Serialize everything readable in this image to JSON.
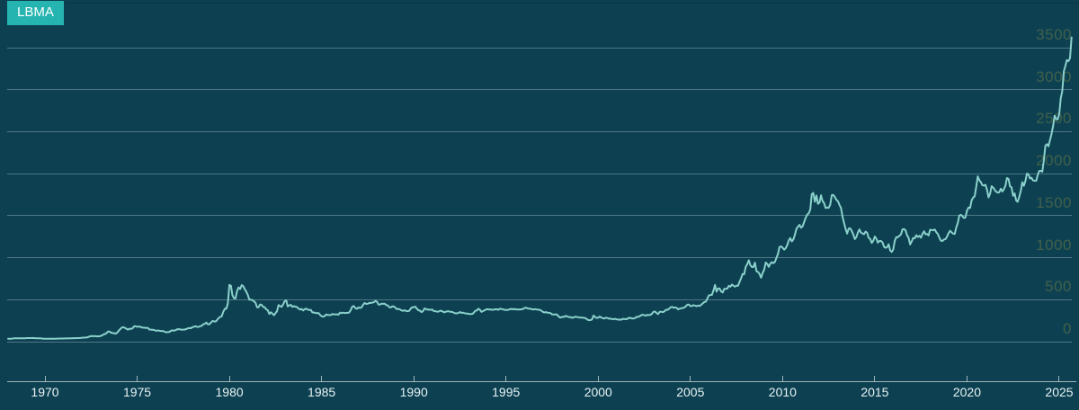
{
  "badge": {
    "label": "LBMA",
    "background": "#26b4b0",
    "text_color": "#ffffff"
  },
  "colors": {
    "background": "#0d4152",
    "line": "#8bd0cb",
    "gridline": "rgba(214,232,235,0.33)",
    "axis": "#9fb5ba",
    "x_label": "#e8f2f4",
    "y_label": "#40604a"
  },
  "chart_data": {
    "type": "line",
    "title": "",
    "legend": [
      "LBMA"
    ],
    "x_axis": {
      "ticks": [
        1970,
        1975,
        1980,
        1985,
        1990,
        1995,
        2000,
        2005,
        2010,
        2015,
        2020,
        2025
      ],
      "range": [
        1968.0,
        2025.7
      ],
      "grid": false
    },
    "y_axis": {
      "ticks": [
        0,
        500,
        1000,
        1500,
        2000,
        2500,
        3000,
        3500
      ],
      "range": [
        0,
        3500
      ],
      "grid": true,
      "side": "right"
    },
    "series": [
      {
        "name": "LBMA",
        "color": "#8bd0cb",
        "interval": "monthly",
        "monthly_values_by_year": {
          "1968": [
            35.2,
            35.2,
            35.1,
            37.9,
            40.7,
            41.1,
            39.5,
            39.2,
            40.2,
            39.2,
            39.1,
            41.1
          ],
          "1969": [
            42.3,
            42.6,
            43.2,
            43.3,
            43.5,
            41.4,
            41.8,
            41.1,
            40.9,
            40.4,
            37.4,
            35.2
          ],
          "1970": [
            34.9,
            35.0,
            35.1,
            35.6,
            36.0,
            35.4,
            35.3,
            35.4,
            36.2,
            37.5,
            37.4,
            37.4
          ],
          "1971": [
            37.9,
            38.7,
            38.9,
            39.0,
            40.5,
            40.1,
            41.1,
            42.7,
            42.0,
            42.5,
            42.9,
            43.5
          ],
          "1972": [
            45.8,
            48.3,
            48.3,
            49.0,
            54.6,
            62.1,
            65.7,
            67.0,
            65.5,
            65.0,
            62.9,
            63.9
          ],
          "1973": [
            65.1,
            74.2,
            84.4,
            90.5,
            102.0,
            120.1,
            120.2,
            106.8,
            103.0,
            100.1,
            94.8,
            106.7
          ],
          "1974": [
            129.2,
            150.2,
            168.4,
            172.2,
            163.3,
            154.1,
            143.0,
            154.6,
            151.8,
            158.8,
            181.7,
            183.9
          ],
          "1975": [
            176.3,
            179.5,
            178.2,
            169.5,
            167.4,
            164.3,
            165.1,
            163.0,
            144.1,
            142.9,
            142.4,
            139.3
          ],
          "1976": [
            131.5,
            131.1,
            132.6,
            127.9,
            126.9,
            125.7,
            117.8,
            109.9,
            114.2,
            116.1,
            130.5,
            133.8
          ],
          "1977": [
            132.3,
            136.3,
            148.2,
            149.2,
            146.6,
            140.8,
            143.4,
            144.9,
            149.5,
            158.9,
            162.1,
            160.5
          ],
          "1978": [
            173.2,
            178.2,
            183.7,
            175.3,
            176.3,
            183.8,
            188.7,
            206.3,
            212.1,
            227.4,
            206.1,
            207.8
          ],
          "1979": [
            227.3,
            245.7,
            242.0,
            239.2,
            257.6,
            279.1,
            294.7,
            300.8,
            355.1,
            391.7,
            392.0,
            455.1
          ],
          "1980": [
            675.3,
            665.3,
            553.6,
            517.4,
            513.8,
            600.7,
            644.3,
            627.1,
            673.6,
            661.1,
            623.5,
            594.9
          ],
          "1981": [
            557.4,
            499.8,
            498.8,
            495.8,
            479.7,
            464.8,
            409.3,
            410.2,
            443.6,
            437.8,
            413.4,
            410.1
          ],
          "1982": [
            384.4,
            374.1,
            330.0,
            350.3,
            333.8,
            314.9,
            339.0,
            364.2,
            435.8,
            422.2,
            414.9,
            444.3
          ],
          "1983": [
            481.3,
            491.9,
            419.7,
            432.9,
            438.1,
            412.8,
            422.7,
            416.2,
            411.8,
            393.6,
            381.7,
            389.4
          ],
          "1984": [
            370.9,
            386.3,
            394.3,
            381.4,
            377.4,
            377.7,
            347.5,
            347.7,
            341.1,
            340.2,
            341.2,
            320.1
          ],
          "1985": [
            302.7,
            299.1,
            304.2,
            324.7,
            316.6,
            316.8,
            317.3,
            329.3,
            324.3,
            325.9,
            325.2,
            320.8
          ],
          "1986": [
            345.4,
            338.9,
            345.7,
            340.4,
            342.6,
            342.6,
            348.5,
            376.6,
            417.7,
            423.5,
            398.8,
            391.2
          ],
          "1987": [
            408.3,
            401.1,
            408.9,
            438.4,
            460.2,
            449.6,
            450.5,
            461.2,
            460.2,
            465.4,
            467.6,
            486.3
          ],
          "1988": [
            476.6,
            442.1,
            443.6,
            451.6,
            451.0,
            451.3,
            437.6,
            431.3,
            412.8,
            406.8,
            420.2,
            418.5
          ],
          "1989": [
            404.0,
            387.8,
            390.1,
            384.1,
            371.0,
            367.6,
            375.0,
            365.4,
            361.8,
            366.9,
            394.3,
            409.4
          ],
          "1990": [
            410.1,
            416.8,
            393.1,
            374.3,
            369.2,
            352.3,
            362.5,
            394.7,
            388.5,
            380.7,
            381.7,
            378.2
          ],
          "1991": [
            383.6,
            363.8,
            363.3,
            358.4,
            356.8,
            366.7,
            367.7,
            356.2,
            348.7,
            358.7,
            360.2,
            361.1
          ],
          "1992": [
            354.4,
            353.9,
            344.3,
            338.5,
            337.2,
            340.8,
            353.0,
            342.9,
            345.5,
            338.9,
            335.1,
            334.8
          ],
          "1993": [
            329.0,
            329.4,
            330.1,
            342.1,
            367.2,
            371.9,
            392.2,
            379.8,
            355.3,
            364.2,
            373.5,
            383.3
          ],
          "1994": [
            386.9,
            381.9,
            384.1,
            377.3,
            381.4,
            385.6,
            385.5,
            380.4,
            391.6,
            389.8,
            384.4,
            379.3
          ],
          "1995": [
            378.6,
            376.6,
            382.1,
            391.0,
            385.1,
            387.6,
            386.2,
            383.8,
            383.1,
            383.1,
            385.3,
            387.4
          ],
          "1996": [
            400.3,
            404.8,
            396.3,
            392.8,
            391.9,
            385.3,
            383.5,
            387.4,
            383.1,
            381.1,
            377.9,
            369.0
          ],
          "1997": [
            355.1,
            346.6,
            352.1,
            344.5,
            343.9,
            340.8,
            324.1,
            324.0,
            322.8,
            324.9,
            306.0,
            288.7
          ],
          "1998": [
            289.2,
            297.5,
            295.9,
            308.3,
            299.1,
            292.3,
            292.9,
            284.1,
            289.0,
            296.0,
            294.1,
            291.3
          ],
          "1999": [
            287.1,
            287.2,
            286.0,
            282.6,
            276.8,
            261.3,
            255.8,
            257.0,
            264.7,
            310.7,
            292.8,
            283.1
          ],
          "2000": [
            284.3,
            299.9,
            286.4,
            279.9,
            275.2,
            285.7,
            281.6,
            274.5,
            273.7,
            270.0,
            266.0,
            271.5
          ],
          "2001": [
            265.5,
            261.9,
            263.0,
            260.5,
            272.4,
            270.2,
            267.5,
            272.4,
            283.4,
            283.1,
            276.2,
            275.9
          ],
          "2002": [
            281.5,
            295.5,
            294.1,
            302.7,
            314.5,
            321.2,
            313.3,
            310.3,
            319.2,
            316.6,
            319.2,
            332.6
          ],
          "2003": [
            356.9,
            359.0,
            340.6,
            328.2,
            355.7,
            356.5,
            351.0,
            359.8,
            379.0,
            378.9,
            389.9,
            407.6
          ],
          "2004": [
            414.0,
            405.3,
            406.7,
            403.0,
            383.8,
            392.4,
            398.1,
            400.5,
            405.3,
            420.5,
            439.4,
            442.1
          ],
          "2005": [
            424.2,
            423.4,
            434.2,
            428.9,
            421.9,
            430.7,
            424.5,
            437.9,
            456.1,
            469.9,
            476.7,
            510.1
          ],
          "2006": [
            549.9,
            555.0,
            557.1,
            610.6,
            675.4,
            596.2,
            633.7,
            632.6,
            598.2,
            585.8,
            627.8,
            629.8
          ],
          "2007": [
            631.2,
            664.7,
            654.9,
            679.4,
            666.9,
            655.5,
            665.3,
            665.4,
            712.7,
            754.6,
            806.3,
            803.2
          ],
          "2008": [
            889.6,
            922.3,
            968.4,
            909.7,
            888.7,
            889.5,
            939.8,
            839.0,
            829.9,
            806.6,
            760.9,
            816.1
          ],
          "2009": [
            858.7,
            943.2,
            924.3,
            890.2,
            928.6,
            945.7,
            934.2,
            949.4,
            996.6,
            1043.2,
            1127.0,
            1134.7
          ],
          "2010": [
            1118.0,
            1095.4,
            1113.3,
            1148.7,
            1205.4,
            1232.9,
            1193.0,
            1215.8,
            1271.1,
            1342.0,
            1369.9,
            1390.6
          ],
          "2011": [
            1356.4,
            1372.7,
            1424.0,
            1473.8,
            1512.3,
            1528.7,
            1572.8,
            1755.8,
            1771.9,
            1665.2,
            1739.0,
            1641.0
          ],
          "2012": [
            1656.1,
            1742.6,
            1673.8,
            1649.2,
            1591.2,
            1596.7,
            1593.9,
            1630.3,
            1744.8,
            1747.0,
            1721.6,
            1688.5
          ],
          "2013": [
            1671.8,
            1627.6,
            1593.1,
            1487.9,
            1414.0,
            1343.4,
            1286.7,
            1347.1,
            1348.8,
            1316.2,
            1275.9,
            1221.5
          ],
          "2014": [
            1244.3,
            1300.5,
            1336.1,
            1298.5,
            1288.7,
            1279.1,
            1310.9,
            1296.0,
            1236.6,
            1222.5,
            1176.3,
            1200.6
          ],
          "2015": [
            1250.8,
            1227.2,
            1178.6,
            1198.9,
            1198.6,
            1181.5,
            1128.3,
            1117.9,
            1124.8,
            1159.3,
            1086.4,
            1068.3
          ],
          "2016": [
            1097.4,
            1199.9,
            1245.1,
            1242.3,
            1260.9,
            1276.4,
            1336.7,
            1340.2,
            1326.6,
            1266.6,
            1236.4,
            1157.4
          ],
          "2017": [
            1192.1,
            1234.2,
            1231.4,
            1266.9,
            1245.9,
            1260.3,
            1236.8,
            1283.0,
            1314.1,
            1279.5,
            1281.9,
            1264.4
          ],
          "2018": [
            1331.3,
            1330.7,
            1324.7,
            1334.8,
            1303.5,
            1281.6,
            1237.7,
            1201.7,
            1198.4,
            1215.4,
            1220.7,
            1250.4
          ],
          "2019": [
            1291.8,
            1320.1,
            1300.9,
            1285.9,
            1283.7,
            1359.0,
            1412.9,
            1500.4,
            1510.6,
            1494.8,
            1471.9,
            1479.1
          ],
          "2020": [
            1560.7,
            1597.1,
            1591.9,
            1683.2,
            1715.9,
            1732.2,
            1843.2,
            1968.6,
            1921.9,
            1900.3,
            1863.6,
            1858.4
          ],
          "2021": [
            1866.6,
            1808.2,
            1718.2,
            1762.0,
            1850.3,
            1834.6,
            1807.3,
            1784.3,
            1776.1,
            1777.4,
            1820.8,
            1787.6
          ],
          "2022": [
            1816.5,
            1856.3,
            1948.0,
            1937.2,
            1848.5,
            1836.6,
            1736.0,
            1765.4,
            1681.1,
            1664.5,
            1726.0,
            1797.6
          ],
          "2023": [
            1898.8,
            1856.0,
            1913.1,
            2000.1,
            1992.1,
            1942.9,
            1951.1,
            1919.0,
            1915.9,
            1915.2,
            1984.1,
            2033.1
          ],
          "2024": [
            2034.4,
            2023.3,
            2158.3,
            2332.2,
            2351.0,
            2326.3,
            2398.0,
            2470.2,
            2568.2,
            2690.1,
            2652.2,
            2644.5
          ],
          "2025": [
            2708.3,
            2896.9,
            2983.3,
            3217.6,
            3280.1,
            3352.7,
            3339.9,
            3374.3,
            3622.0
          ]
        }
      }
    ]
  }
}
